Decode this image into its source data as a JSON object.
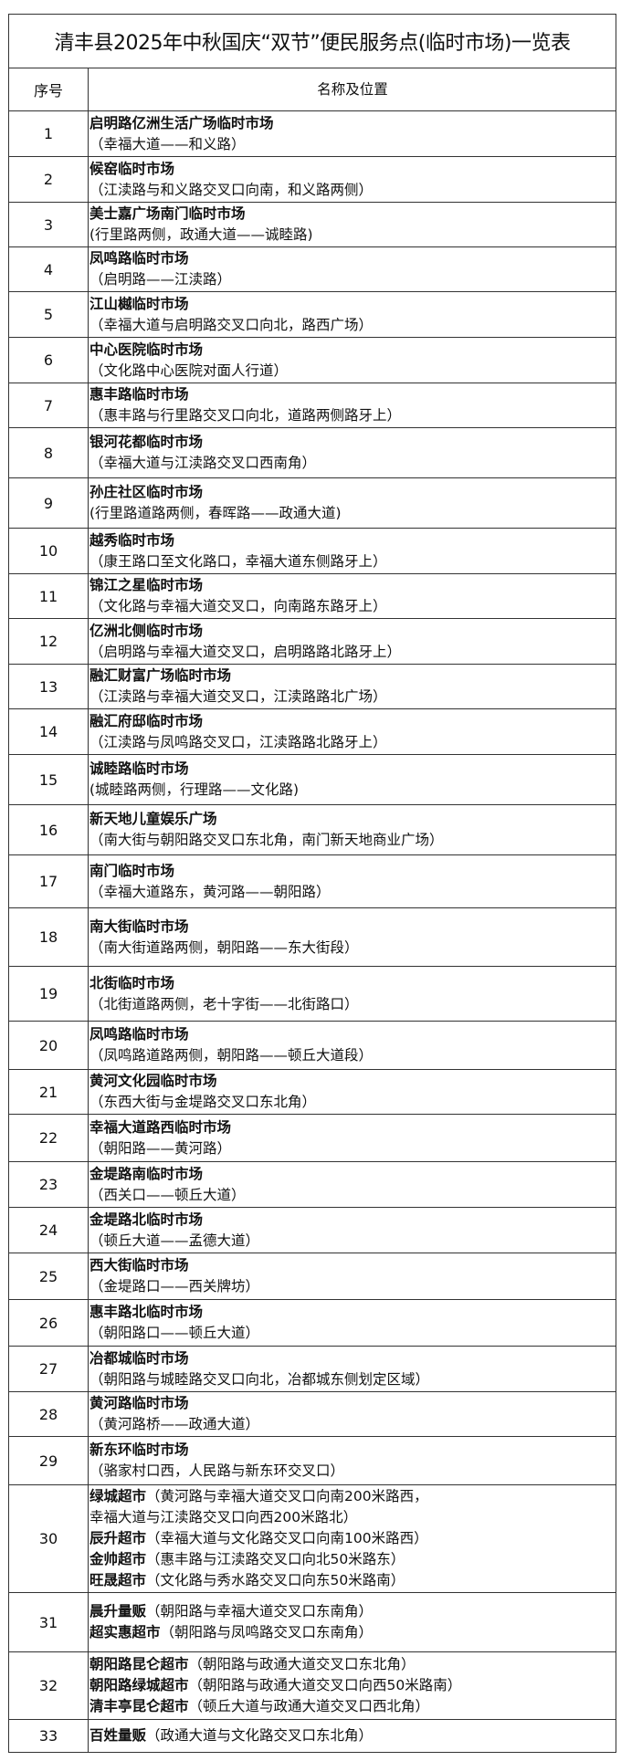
{
  "title": "清丰县2025年中秋国庆“双节”便民服务点(临时市场)一览表",
  "header": {
    "no": "序号",
    "name": "名称及位置"
  },
  "rows": [
    {
      "no": "1",
      "lines": [
        {
          "name": "启明路亿洲生活广场临时市场",
          "loc": ""
        },
        {
          "name": "",
          "loc": "（幸福大道——和义路）"
        }
      ]
    },
    {
      "no": "2",
      "lines": [
        {
          "name": "候窑临时市场",
          "loc": ""
        },
        {
          "name": "",
          "loc": "（江渎路与和义路交叉口向南，和义路两侧）"
        }
      ]
    },
    {
      "no": "3",
      "lines": [
        {
          "name": "美士嘉广场南门临时市场",
          "loc": ""
        },
        {
          "name": "",
          "loc": "(行里路两侧，政通大道——诚睦路)"
        }
      ]
    },
    {
      "no": "4",
      "lines": [
        {
          "name": "凤鸣路临时市场",
          "loc": ""
        },
        {
          "name": "",
          "loc": "（启明路——江渎路）"
        }
      ]
    },
    {
      "no": "5",
      "lines": [
        {
          "name": "江山樾临时市场",
          "loc": ""
        },
        {
          "name": "",
          "loc": "（幸福大道与启明路交叉口向北，路西广场）"
        }
      ]
    },
    {
      "no": "6",
      "lines": [
        {
          "name": "中心医院临时市场",
          "loc": ""
        },
        {
          "name": "",
          "loc": "（文化路中心医院对面人行道）"
        }
      ]
    },
    {
      "no": "7",
      "lines": [
        {
          "name": "惠丰路临时市场",
          "loc": ""
        },
        {
          "name": "",
          "loc": "（惠丰路与行里路交叉口向北，道路两侧路牙上）"
        }
      ]
    },
    {
      "no": "8",
      "lines": [
        {
          "name": "银河花都临时市场",
          "loc": ""
        },
        {
          "name": "",
          "loc": "（幸福大道与江渎路交叉口西南角）"
        }
      ]
    },
    {
      "no": "9",
      "lines": [
        {
          "name": "孙庄社区临时市场",
          "loc": ""
        },
        {
          "name": "",
          "loc": "(行里路道路两侧，春晖路——政通大道)"
        }
      ]
    },
    {
      "no": "10",
      "lines": [
        {
          "name": "越秀临时市场",
          "loc": ""
        },
        {
          "name": "",
          "loc": "（康王路口至文化路口，幸福大道东侧路牙上）"
        }
      ]
    },
    {
      "no": "11",
      "lines": [
        {
          "name": "锦江之星临时市场",
          "loc": ""
        },
        {
          "name": "",
          "loc": "（文化路与幸福大道交叉口，向南路东路牙上）"
        }
      ]
    },
    {
      "no": "12",
      "lines": [
        {
          "name": "亿洲北侧临时市场",
          "loc": ""
        },
        {
          "name": "",
          "loc": "（启明路与幸福大道交叉口，启明路路北路牙上）"
        }
      ]
    },
    {
      "no": "13",
      "lines": [
        {
          "name": "融汇财富广场临时市场",
          "loc": ""
        },
        {
          "name": "",
          "loc": "（江渎路与幸福大道交叉口，江渎路路北广场）"
        }
      ]
    },
    {
      "no": "14",
      "lines": [
        {
          "name": "融汇府邸临时市场",
          "loc": ""
        },
        {
          "name": "",
          "loc": "（江渎路与凤鸣路交叉口，江渎路路北路牙上）"
        }
      ]
    },
    {
      "no": "15",
      "lines": [
        {
          "name": "诚睦路临时市场",
          "loc": ""
        },
        {
          "name": "",
          "loc": "(城睦路两侧，行理路——文化路)"
        }
      ]
    },
    {
      "no": "16",
      "lines": [
        {
          "name": "新天地儿童娱乐广场",
          "loc": ""
        },
        {
          "name": "",
          "loc": "（南大街与朝阳路交叉口东北角，南门新天地商业广场）"
        }
      ]
    },
    {
      "no": "17",
      "lines": [
        {
          "name": "南门临时市场",
          "loc": ""
        },
        {
          "name": "",
          "loc": "（幸福大道路东，黄河路——朝阳路）"
        }
      ]
    },
    {
      "no": "18",
      "lines": [
        {
          "name": "南大街临时市场",
          "loc": ""
        },
        {
          "name": "",
          "loc": "（南大街道路两侧，朝阳路——东大街段）"
        }
      ]
    },
    {
      "no": "19",
      "lines": [
        {
          "name": "北街临时市场",
          "loc": ""
        },
        {
          "name": "",
          "loc": "（北街道路两侧，老十字街——北街路口）"
        }
      ]
    },
    {
      "no": "20",
      "lines": [
        {
          "name": "凤鸣路临时市场",
          "loc": ""
        },
        {
          "name": "",
          "loc": "（凤鸣路道路两侧，朝阳路——顿丘大道段）"
        }
      ]
    },
    {
      "no": "21",
      "lines": [
        {
          "name": "黄河文化园临时市场",
          "loc": ""
        },
        {
          "name": "",
          "loc": "（东西大街与金堤路交叉口东北角）"
        }
      ]
    },
    {
      "no": "22",
      "lines": [
        {
          "name": "幸福大道路西临时市场",
          "loc": ""
        },
        {
          "name": "",
          "loc": "（朝阳路——黄河路）"
        }
      ]
    },
    {
      "no": "23",
      "lines": [
        {
          "name": "金堤路南临时市场",
          "loc": ""
        },
        {
          "name": "",
          "loc": "（西关口——顿丘大道）"
        }
      ]
    },
    {
      "no": "24",
      "lines": [
        {
          "name": "金堤路北临时市场",
          "loc": ""
        },
        {
          "name": "",
          "loc": "（顿丘大道——孟德大道）"
        }
      ]
    },
    {
      "no": "25",
      "lines": [
        {
          "name": "西大街临时市场",
          "loc": ""
        },
        {
          "name": "",
          "loc": "（金堤路口——西关牌坊）"
        }
      ]
    },
    {
      "no": "26",
      "lines": [
        {
          "name": "惠丰路北临时市场",
          "loc": ""
        },
        {
          "name": "",
          "loc": "（朝阳路口——顿丘大道）"
        }
      ]
    },
    {
      "no": "27",
      "lines": [
        {
          "name": "冶都城临时市场",
          "loc": ""
        },
        {
          "name": "",
          "loc": "（朝阳路与城睦路交叉口向北，冶都城东侧划定区域）"
        }
      ]
    },
    {
      "no": "28",
      "lines": [
        {
          "name": "黄河路临时市场",
          "loc": ""
        },
        {
          "name": "",
          "loc": "（黄河路桥——政通大道）"
        }
      ]
    },
    {
      "no": "29",
      "lines": [
        {
          "name": "新东环临时市场",
          "loc": ""
        },
        {
          "name": "",
          "loc": "（骆家村口西，人民路与新东环交叉口）"
        }
      ]
    },
    {
      "no": "30",
      "lines": [
        {
          "name": "绿城超市",
          "loc": "（黄河路与幸福大道交叉口向南200米路西，"
        },
        {
          "name": "",
          "loc": " 幸福大道与江渎路交叉口向西200米路北）"
        },
        {
          "name": "辰升超市",
          "loc": "（幸福大道与文化路交叉口向南100米路西）"
        },
        {
          "name": "金帅超市",
          "loc": "（惠丰路与江渎路交叉口向北50米路东）"
        },
        {
          "name": "旺晟超市",
          "loc": "（文化路与秀水路交叉口向东50米路南）"
        }
      ]
    },
    {
      "no": "31",
      "lines": [
        {
          "name": "晨升量贩",
          "loc": "（朝阳路与幸福大道交叉口东南角）"
        },
        {
          "name": "超实惠超市",
          "loc": "（朝阳路与凤鸣路交叉口东南角）"
        }
      ]
    },
    {
      "no": "32",
      "lines": [
        {
          "name": "朝阳路昆仑超市",
          "loc": "（朝阳路与政通大道交叉口东北角）"
        },
        {
          "name": "朝阳路绿城超市",
          "loc": "（朝阳路与政通大道交叉口向西50米路南）"
        },
        {
          "name": "清丰亭昆仑超市",
          "loc": "（顿丘大道与政通大道交叉口西北角）"
        }
      ]
    },
    {
      "no": "33",
      "lines": [
        {
          "name": "百姓量贩",
          "loc": "（政通大道与文化路交叉口东北角）"
        }
      ]
    }
  ]
}
